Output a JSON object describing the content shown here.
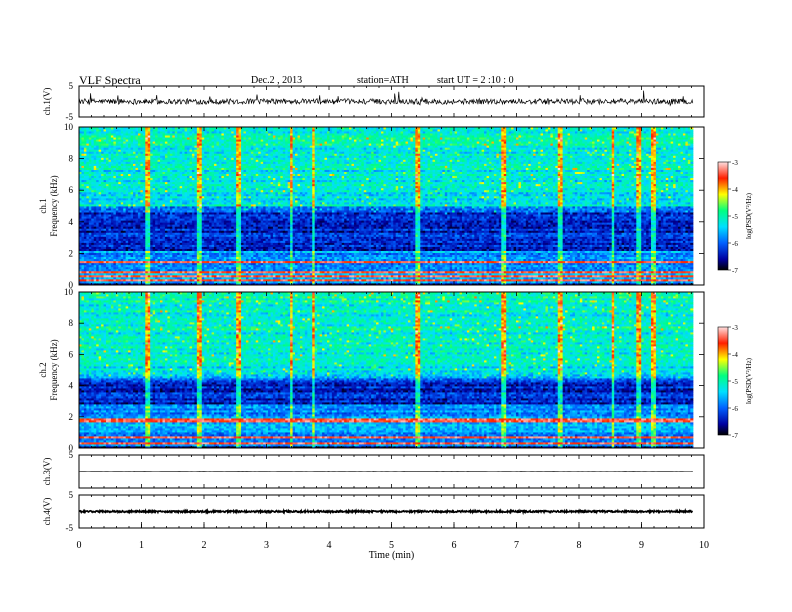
{
  "header": {
    "title": "VLF  Spectra",
    "date": "Dec.2  , 2013",
    "station": "station=ATH",
    "start": "start  UT  =   2  :10 : 0"
  },
  "chart_data": [
    {
      "id": "ch1-waveform",
      "type": "line",
      "ylabel": "ch.1(V)",
      "ylim": [
        -5,
        5
      ],
      "yticks": [
        "5",
        "-5"
      ],
      "series": [
        {
          "values_description": "broadband waveform around 0 V with sferic spikes to about 5 V",
          "baseline": 0,
          "amplitude": 0.9,
          "spike_max": 5.5
        }
      ]
    },
    {
      "id": "ch1-spectrogram",
      "type": "heatmap",
      "ylabel": "Frequency  (kHz)",
      "channel_label": "ch.1",
      "ylim": [
        0,
        10
      ],
      "yticks": [
        "0",
        "2",
        "4",
        "6",
        "8",
        "10"
      ],
      "colorbar": {
        "label": "log(PSD(V²/Hz)",
        "range": [
          -7,
          -3
        ],
        "ticks": [
          "-3",
          "-4",
          "-5",
          "-6",
          "-7"
        ]
      },
      "features": {
        "quiet_band_khz": [
          2.2,
          4.6
        ],
        "noisy_band_khz": [
          5,
          10
        ],
        "strong_lines_khz": [
          0.3,
          0.6,
          0.8,
          1.5
        ],
        "sferic_times_min": [
          1.1,
          1.93,
          2.55,
          3.4,
          3.75,
          5.43,
          6.8,
          7.7,
          8.55,
          8.95,
          9.2
        ]
      }
    },
    {
      "id": "ch2-spectrogram",
      "type": "heatmap",
      "ylabel": "Frequency  (kHz)",
      "channel_label": "ch.2",
      "ylim": [
        0,
        10
      ],
      "yticks": [
        "0",
        "2",
        "4",
        "6",
        "8",
        "10"
      ],
      "colorbar": {
        "label": "log(PSD(V²/Hz)",
        "range": [
          -7,
          -3
        ],
        "ticks": [
          "-3",
          "-4",
          "-5",
          "-6",
          "-7"
        ]
      },
      "features": {
        "quiet_band_khz": [
          2.8,
          4.4
        ],
        "noisy_band_khz": [
          4.6,
          10
        ],
        "strong_lines_khz": [
          0.3,
          0.7,
          1.8
        ],
        "sferic_times_min": [
          1.1,
          1.93,
          2.55,
          3.4,
          3.75,
          5.43,
          6.8,
          7.7,
          8.55,
          8.95,
          9.2
        ]
      }
    },
    {
      "id": "ch3-waveform",
      "type": "line",
      "ylabel": "ch.3(V)",
      "ylim": [
        -5,
        5
      ],
      "yticks": [
        "5"
      ],
      "series": [
        {
          "values_description": "nearly flat trace",
          "baseline": 0,
          "amplitude": 0.05
        }
      ]
    },
    {
      "id": "ch4-waveform",
      "type": "line",
      "ylabel": "ch.4(V)",
      "ylim": [
        -5,
        5
      ],
      "yticks": [
        "5",
        "-5"
      ],
      "series": [
        {
          "values_description": "dense thick trace near 0 V",
          "baseline": 0,
          "amplitude": 0.25
        }
      ]
    },
    {
      "id": "time-axis",
      "type": "line",
      "xlabel": "Time  (min)",
      "xlim": [
        0,
        10
      ],
      "xticks": [
        "0",
        "1",
        "2",
        "3",
        "4",
        "5",
        "6",
        "7",
        "8",
        "9",
        "10"
      ],
      "data_end_min": 9.82
    }
  ]
}
